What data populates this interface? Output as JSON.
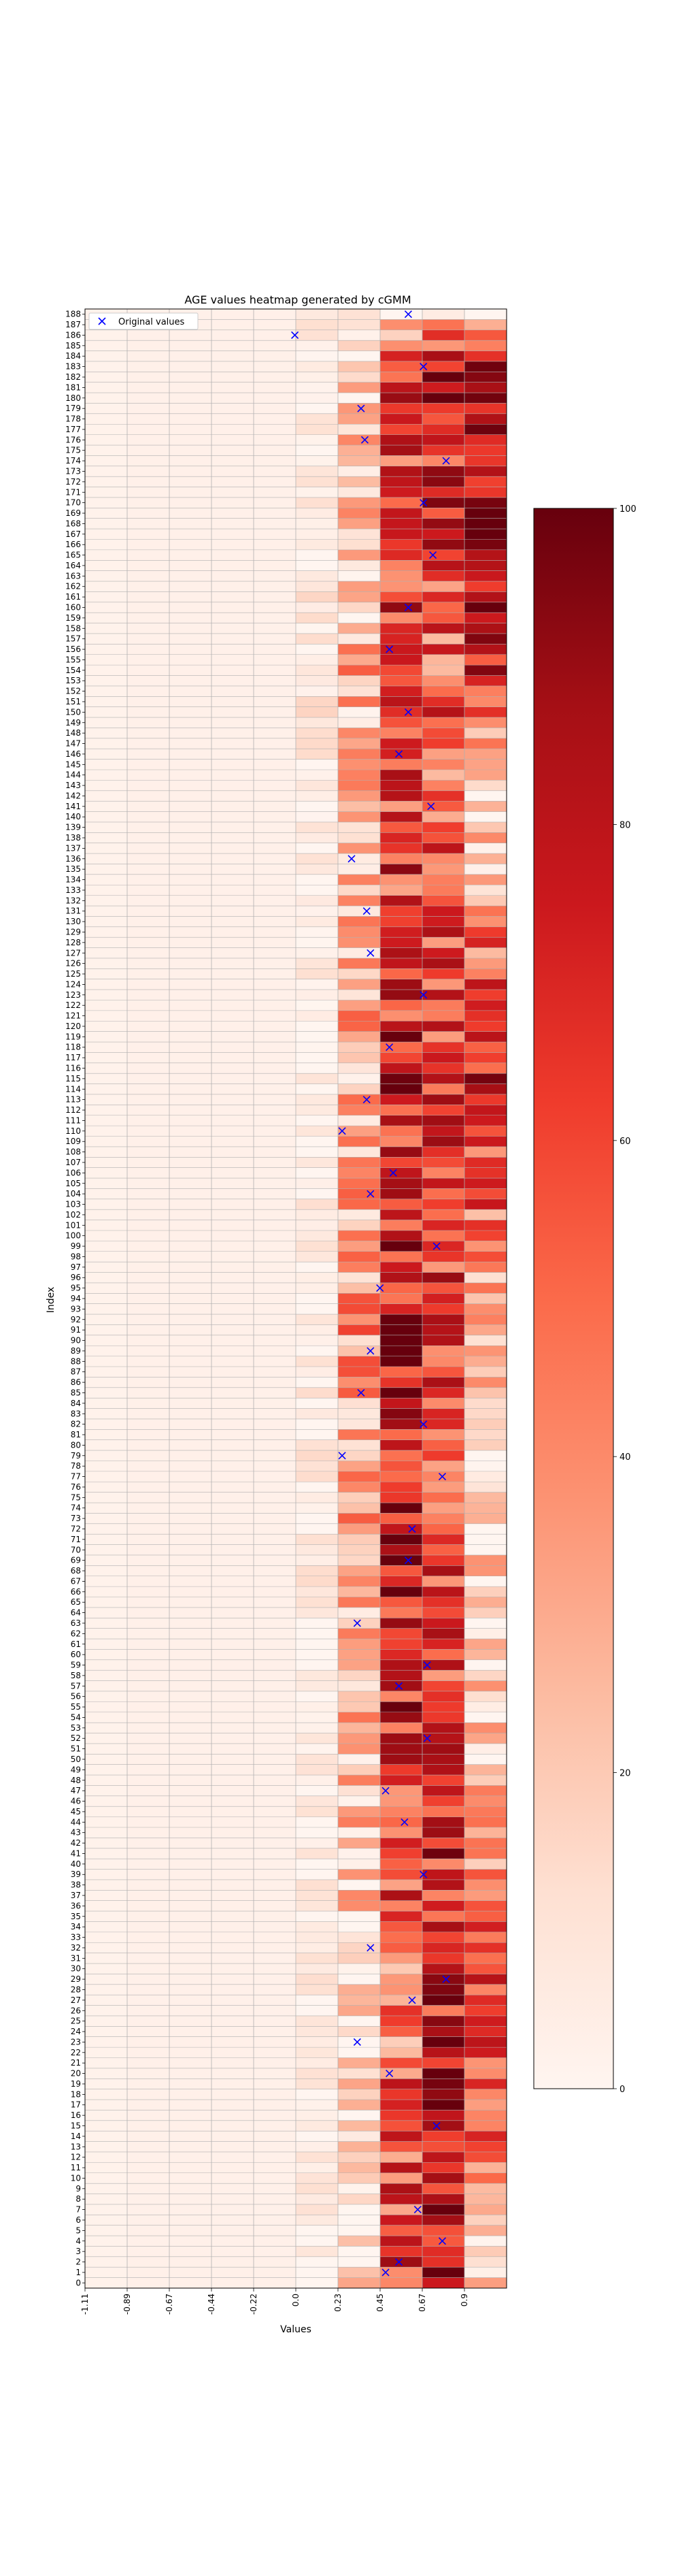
{
  "chart_data": {
    "type": "heatmap",
    "title": "AGE values heatmap generated by cGMM",
    "xlabel": "Values",
    "ylabel": "Index",
    "x_ticks": [
      "-1.11",
      "-0.89",
      "-0.67",
      "-0.44",
      "-0.22",
      "0.0",
      "0.23",
      "0.45",
      "0.67",
      "0.9"
    ],
    "x_range": [
      -1.11,
      1.12
    ],
    "n_rows": 189,
    "legend": {
      "label": "Original values",
      "marker": "x",
      "color": "#0000ff",
      "placement": "top-left"
    },
    "colorbar": {
      "colormap": "Reds",
      "min": 0,
      "max": 100,
      "ticks": [
        0,
        20,
        40,
        60,
        80,
        100
      ]
    },
    "heat_anchors": [
      {
        "index": 0,
        "values": [
          2,
          3,
          3,
          3,
          3,
          3,
          5,
          65,
          85,
          12
        ]
      },
      {
        "index": 24,
        "values": [
          2,
          3,
          3,
          3,
          3,
          3,
          8,
          45,
          75,
          70
        ]
      },
      {
        "index": 50,
        "values": [
          2,
          3,
          3,
          3,
          3,
          4,
          20,
          70,
          65,
          15
        ]
      },
      {
        "index": 80,
        "values": [
          2,
          3,
          3,
          3,
          3,
          5,
          35,
          80,
          60,
          10
        ]
      },
      {
        "index": 117,
        "values": [
          2,
          3,
          3,
          3,
          3,
          4,
          30,
          70,
          65,
          75
        ]
      },
      {
        "index": 141,
        "values": [
          2,
          3,
          3,
          3,
          3,
          6,
          30,
          60,
          50,
          12
        ]
      },
      {
        "index": 157,
        "values": [
          2,
          3,
          3,
          3,
          3,
          7,
          25,
          60,
          55,
          85
        ]
      },
      {
        "index": 184,
        "values": [
          2,
          3,
          3,
          3,
          3,
          4,
          18,
          65,
          80,
          85
        ]
      },
      {
        "index": 188,
        "values": [
          2,
          3,
          3,
          3,
          3,
          5,
          12,
          20,
          15,
          6
        ]
      }
    ],
    "original_values": [
      [
        1,
        0.48
      ],
      [
        2,
        0.55
      ],
      [
        4,
        0.78
      ],
      [
        7,
        0.65
      ],
      [
        15,
        0.75
      ],
      [
        20,
        0.5
      ],
      [
        23,
        0.33
      ],
      [
        27,
        0.62
      ],
      [
        29,
        0.8
      ],
      [
        32,
        0.4
      ],
      [
        39,
        0.68
      ],
      [
        44,
        0.58
      ],
      [
        47,
        0.48
      ],
      [
        52,
        0.7
      ],
      [
        57,
        0.55
      ],
      [
        59,
        0.7
      ],
      [
        63,
        0.33
      ],
      [
        69,
        0.6
      ],
      [
        72,
        0.62
      ],
      [
        77,
        0.78
      ],
      [
        79,
        0.25
      ],
      [
        82,
        0.68
      ],
      [
        85,
        0.35
      ],
      [
        89,
        0.4
      ],
      [
        95,
        0.45
      ],
      [
        99,
        0.75
      ],
      [
        104,
        0.4
      ],
      [
        106,
        0.52
      ],
      [
        110,
        0.25
      ],
      [
        113,
        0.38
      ],
      [
        118,
        0.5
      ],
      [
        123,
        0.68
      ],
      [
        127,
        0.4
      ],
      [
        131,
        0.38
      ],
      [
        136,
        0.3
      ],
      [
        141,
        0.72
      ],
      [
        146,
        0.55
      ],
      [
        150,
        0.6
      ],
      [
        156,
        0.5
      ],
      [
        160,
        0.6
      ],
      [
        165,
        0.73
      ],
      [
        170,
        0.68
      ],
      [
        174,
        0.8
      ],
      [
        176,
        0.37
      ],
      [
        179,
        0.35
      ],
      [
        183,
        0.68
      ],
      [
        186,
        0.0
      ],
      [
        188,
        0.6
      ]
    ]
  }
}
